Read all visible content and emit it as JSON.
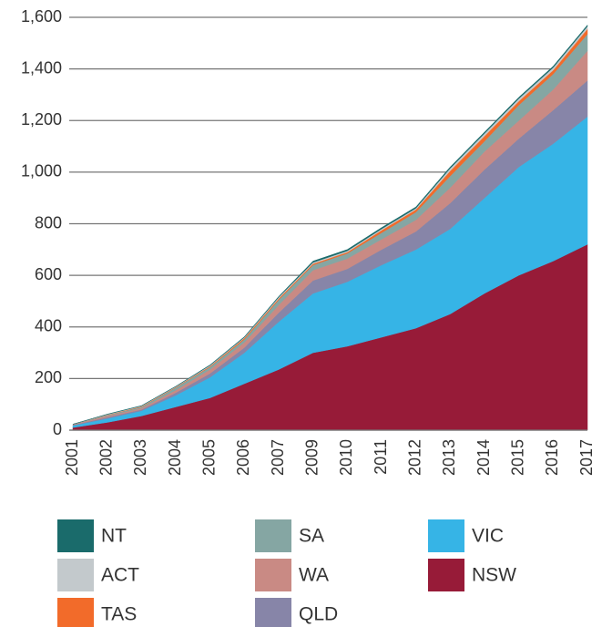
{
  "chart_data": {
    "type": "stacked_area",
    "categories": [
      "2001",
      "2002",
      "2003",
      "2004",
      "2005",
      "2006",
      "2007",
      "2009",
      "2010",
      "2011",
      "2012",
      "2013",
      "2014",
      "2015",
      "2016",
      "2017"
    ],
    "ylim": [
      0,
      1600
    ],
    "yticks": [
      0,
      200,
      400,
      600,
      800,
      {
        "value": 1000,
        "label": "1,000"
      },
      {
        "value": 1200,
        "label": "1,200"
      },
      {
        "value": 1400,
        "label": "1,400"
      },
      {
        "value": 1600,
        "label": "1,600"
      }
    ],
    "grid": true,
    "series": [
      {
        "name": "NSW",
        "color": "#971b38",
        "values": [
          10,
          30,
          55,
          90,
          125,
          180,
          235,
          300,
          325,
          360,
          395,
          450,
          530,
          600,
          655,
          720
        ]
      },
      {
        "name": "VIC",
        "color": "#36b4e6",
        "values": [
          8,
          15,
          20,
          45,
          80,
          120,
          185,
          230,
          250,
          280,
          305,
          330,
          370,
          420,
          455,
          495
        ]
      },
      {
        "name": "QLD",
        "color": "#8785a8",
        "values": [
          2,
          5,
          5,
          10,
          15,
          20,
          35,
          50,
          50,
          60,
          70,
          100,
          110,
          110,
          130,
          140
        ]
      },
      {
        "name": "WA",
        "color": "#c98a84",
        "values": [
          2,
          5,
          5,
          10,
          15,
          20,
          30,
          40,
          40,
          40,
          45,
          60,
          70,
          70,
          80,
          115
        ]
      },
      {
        "name": "SA",
        "color": "#85a6a3",
        "values": [
          1,
          3,
          5,
          10,
          10,
          12,
          20,
          20,
          20,
          25,
          30,
          45,
          40,
          60,
          60,
          65
        ]
      },
      {
        "name": "TAS",
        "color": "#f26b2a",
        "values": [
          0,
          1,
          2,
          2,
          3,
          5,
          5,
          5,
          5,
          10,
          10,
          20,
          20,
          15,
          15,
          20
        ]
      },
      {
        "name": "ACT",
        "color": "#c3c9cc",
        "values": [
          0,
          2,
          2,
          2,
          3,
          3,
          5,
          5,
          5,
          5,
          5,
          10,
          10,
          10,
          10,
          10
        ]
      },
      {
        "name": "NT",
        "color": "#1a6b6b",
        "values": [
          0,
          1,
          1,
          1,
          2,
          2,
          3,
          5,
          5,
          5,
          5,
          5,
          5,
          5,
          5,
          5
        ]
      }
    ]
  }
}
